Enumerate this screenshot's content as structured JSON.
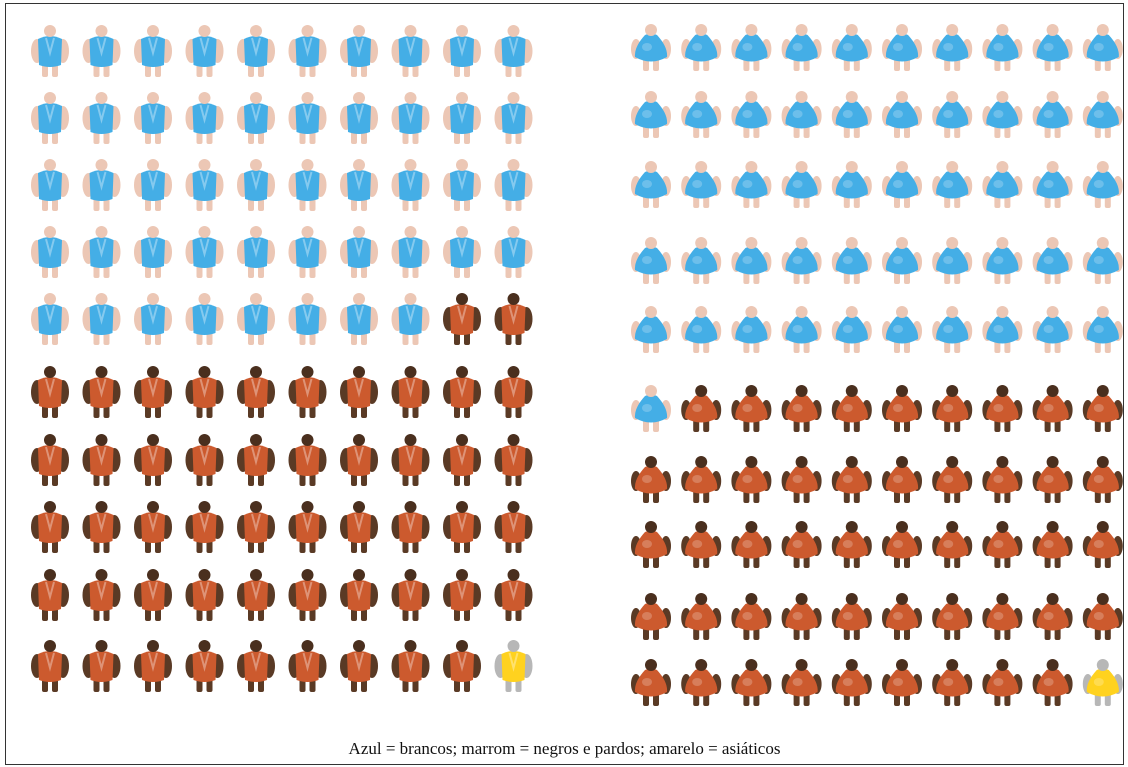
{
  "caption": "Azul = brancos; marrom = negros e pardos; amarelo = asiáticos",
  "colors": {
    "blue": "#44aee6",
    "blue_light": "#8fd2f3",
    "brown": "#cc5a2e",
    "brown_dark": "#5a3a25",
    "yellow": "#ffd21f",
    "skin": "#ecc7b5",
    "gray": "#b7b7b7",
    "dark_skin": "#4a2f1e"
  },
  "chart_data": [
    {
      "type": "pictogram",
      "grid": {
        "columns": 10,
        "rows": 10
      },
      "total": 100,
      "groups": [
        {
          "color": "blue",
          "count": 48
        },
        {
          "color": "brown",
          "count": 51
        },
        {
          "color": "yellow",
          "count": 1
        }
      ]
    },
    {
      "type": "pictogram",
      "grid": {
        "columns": 10,
        "rows": 10
      },
      "total": 100,
      "groups": [
        {
          "color": "blue",
          "count": 51
        },
        {
          "color": "brown",
          "count": 48
        },
        {
          "color": "yellow",
          "count": 1
        }
      ]
    }
  ]
}
